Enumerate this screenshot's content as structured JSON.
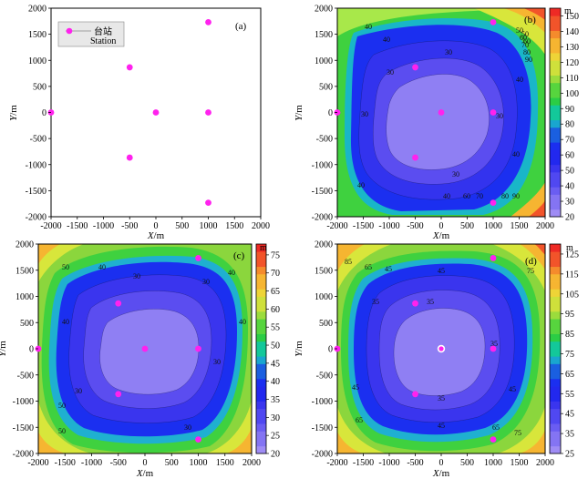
{
  "chart_data": [
    {
      "panel": "(a)",
      "type": "scatter",
      "xlabel_var": "X",
      "ylabel_var": "Y",
      "unit": "/m",
      "xlim": [
        -2000,
        2000
      ],
      "ylim": [
        -2000,
        2000
      ],
      "xticks": [
        "-2000",
        "-1500",
        "-1000",
        "-500",
        "0",
        "500",
        "1000",
        "1500",
        "2000"
      ],
      "yticks": [
        "2000",
        "1500",
        "1000",
        "500",
        "0",
        "-500",
        "-1000",
        "-1500",
        "-2000"
      ],
      "legend": {
        "label_cn": "台站",
        "label_en": "Station",
        "position": "top-left"
      },
      "stations": [
        {
          "x": -2000,
          "y": 0
        },
        {
          "x": -500,
          "y": 866
        },
        {
          "x": -500,
          "y": -866
        },
        {
          "x": 0,
          "y": 0
        },
        {
          "x": 1000,
          "y": 0
        },
        {
          "x": 1000,
          "y": 1732
        },
        {
          "x": 1000,
          "y": -1732
        }
      ],
      "marker_color": "#ff22ee"
    },
    {
      "panel": "(b)",
      "type": "contour",
      "unit": "m",
      "xlabel_var": "X",
      "ylabel_var": "Y",
      "axis_unit": "/m",
      "colorbar_ticks": [
        "20",
        "30",
        "40",
        "50",
        "60",
        "70",
        "80",
        "90",
        "100",
        "110",
        "120",
        "130",
        "140",
        "150"
      ],
      "colorbar_min": 20,
      "colorbar_max": 155,
      "contour_labels": [
        "40",
        "50",
        "60",
        "70",
        "80",
        "90",
        "30",
        "40",
        "30",
        "40",
        "30",
        "30",
        "40",
        "40",
        "60",
        "70",
        "80",
        "90",
        "30",
        "40",
        "50",
        "60"
      ]
    },
    {
      "panel": "(c)",
      "type": "contour",
      "unit": "m",
      "xlabel_var": "X",
      "ylabel_var": "Y",
      "axis_unit": "/m",
      "colorbar_ticks": [
        "20",
        "25",
        "30",
        "35",
        "40",
        "45",
        "50",
        "55",
        "60",
        "65",
        "70",
        "75"
      ],
      "colorbar_min": 20,
      "colorbar_max": 78,
      "contour_labels": [
        "50",
        "40",
        "30",
        "40",
        "30",
        "40",
        "30",
        "50",
        "30",
        "40",
        "30",
        "50"
      ]
    },
    {
      "panel": "(d)",
      "type": "contour",
      "unit": "m",
      "xlabel_var": "X",
      "ylabel_var": "Y",
      "axis_unit": "/m",
      "colorbar_ticks": [
        "25",
        "35",
        "45",
        "55",
        "65",
        "75",
        "85",
        "95",
        "105",
        "115",
        "125"
      ],
      "colorbar_min": 25,
      "colorbar_max": 130,
      "contour_labels": [
        "85",
        "65",
        "45",
        "45",
        "35",
        "35",
        "35",
        "45",
        "45",
        "65",
        "75",
        "35",
        "45",
        "65",
        "75"
      ]
    }
  ]
}
